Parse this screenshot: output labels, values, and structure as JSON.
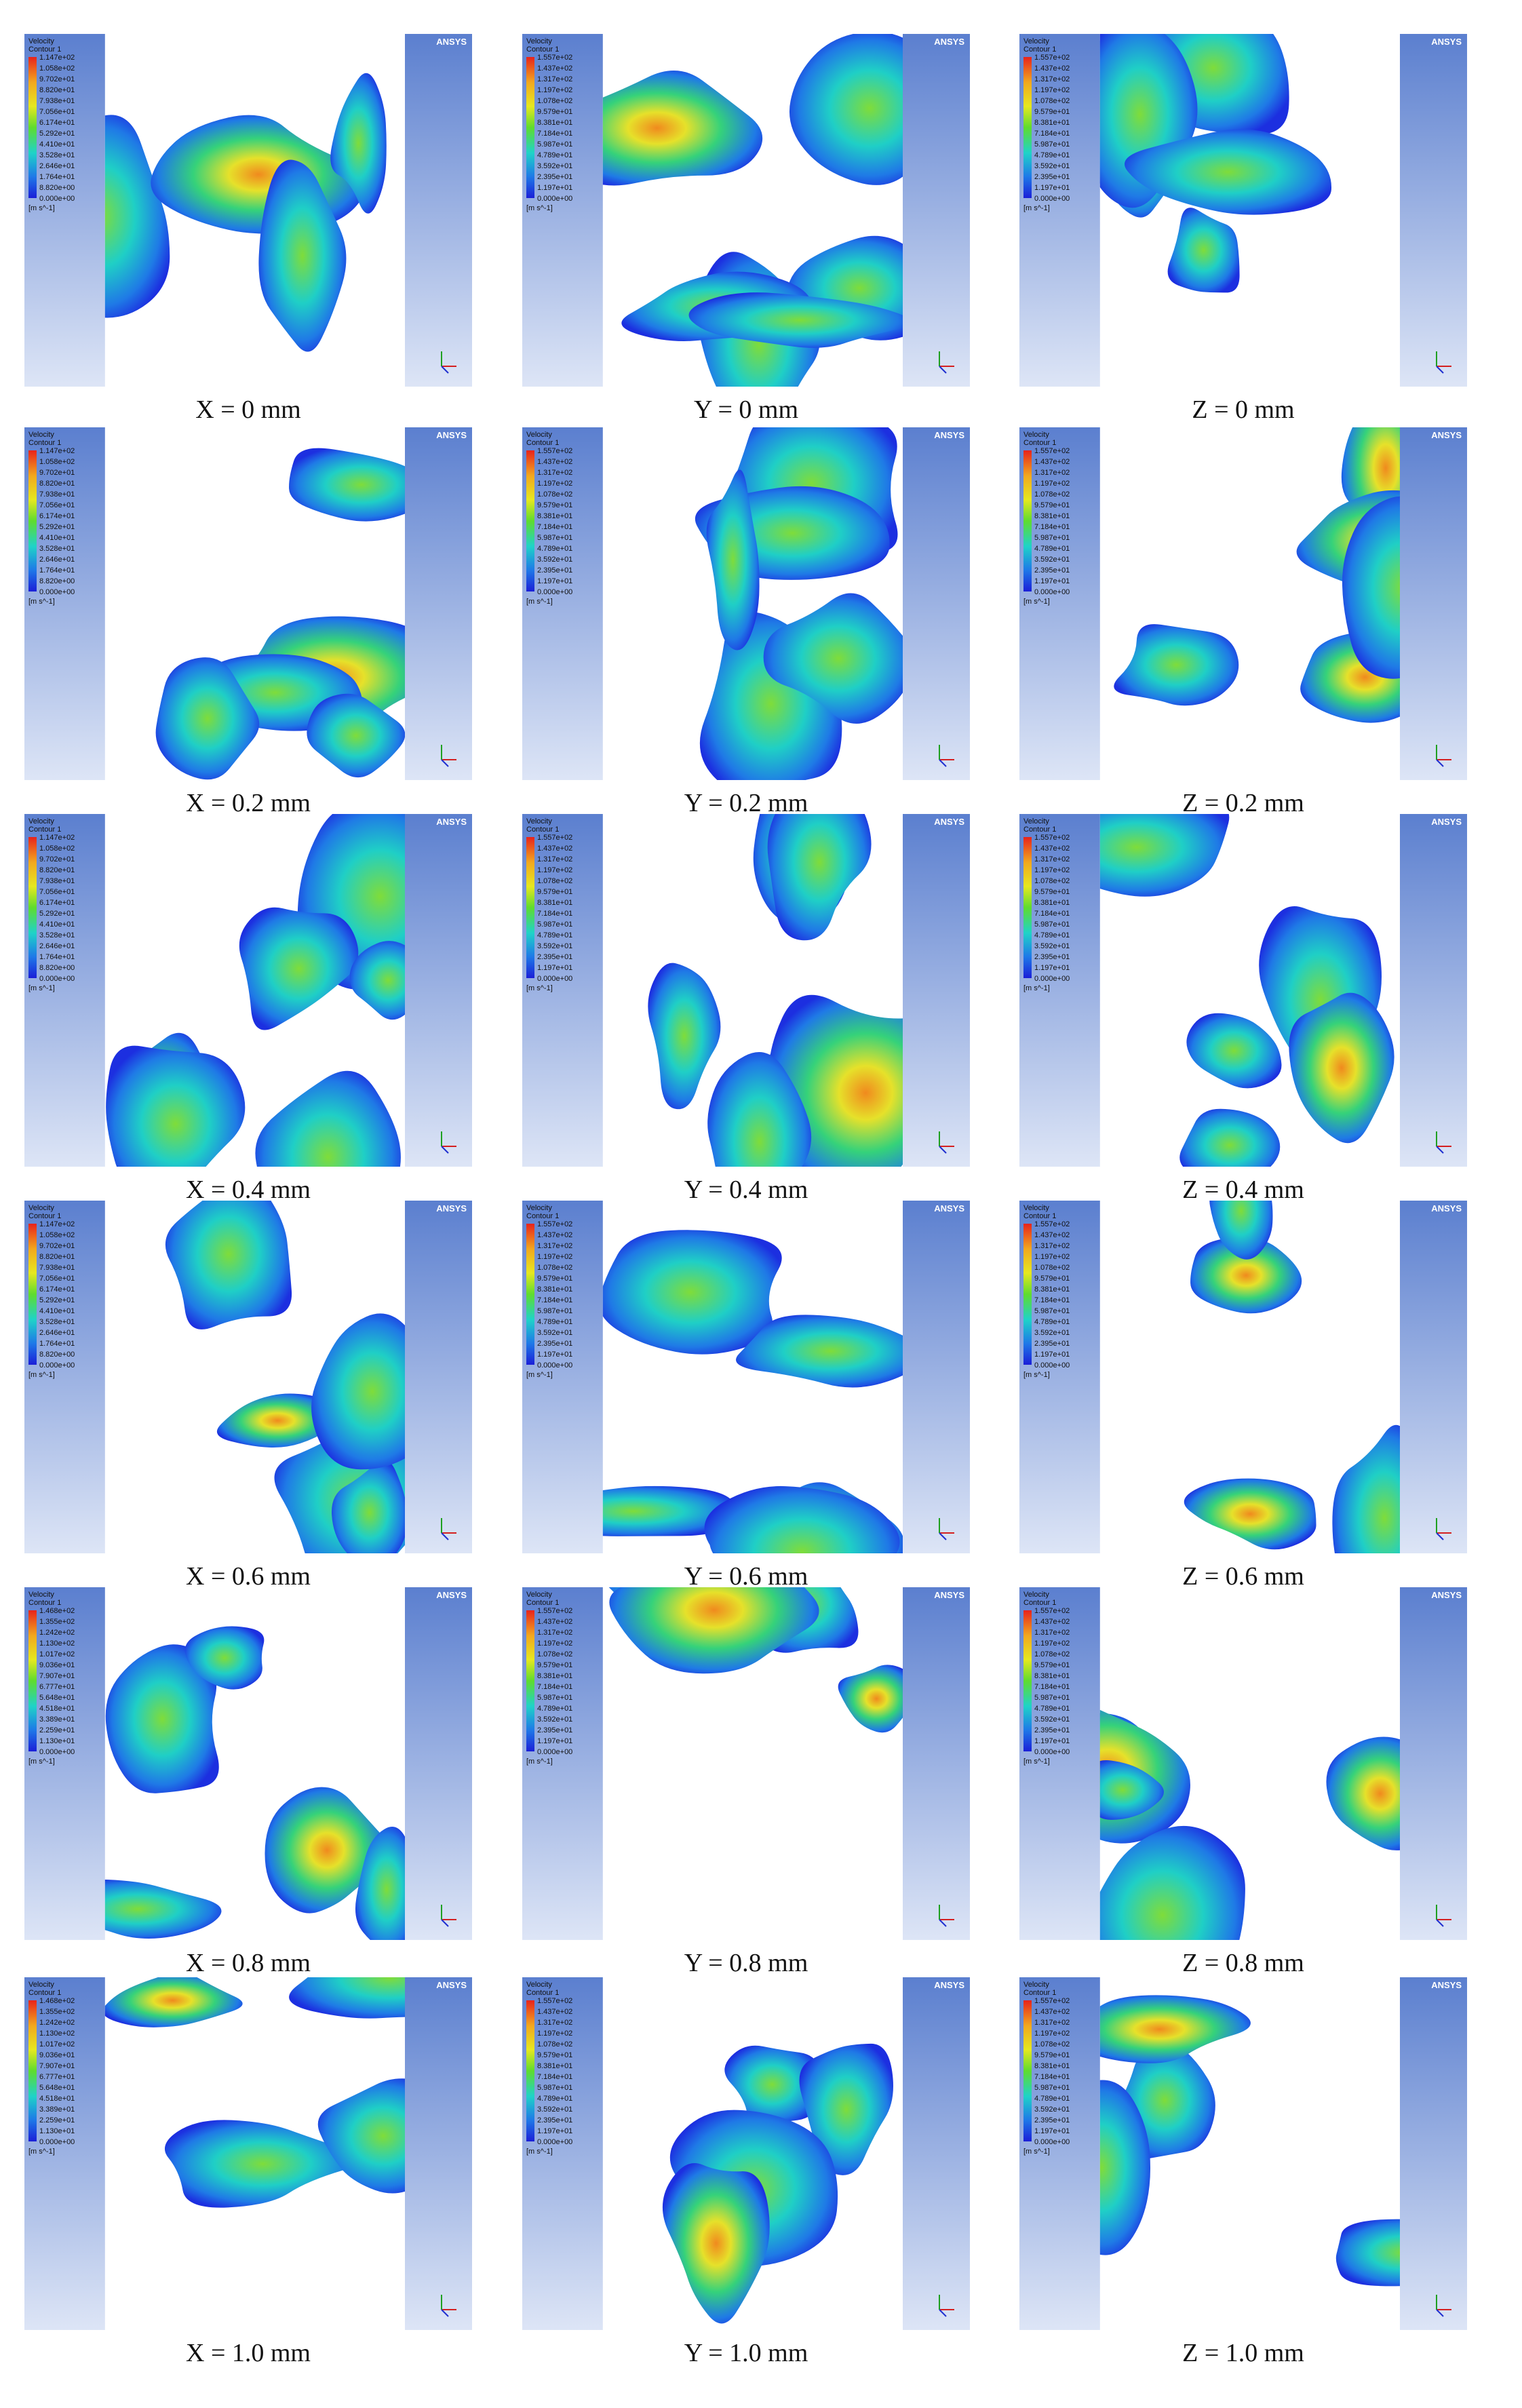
{
  "figure": {
    "panels": [
      {
        "caption": "X = 0 mm",
        "logo": "ANSYS",
        "legend": {
          "title": "Velocity",
          "subtitle": "Contour 1",
          "unit": "[m s^-1]",
          "labels": [
            "1.147e+02",
            "1.058e+02",
            "9.702e+01",
            "8.820e+01",
            "7.938e+01",
            "7.056e+01",
            "6.174e+01",
            "5.292e+01",
            "4.410e+01",
            "3.528e+01",
            "2.646e+01",
            "1.764e+01",
            "8.820e+00",
            "0.000e+00"
          ]
        }
      },
      {
        "caption": "Y = 0 mm",
        "logo": "ANSYS",
        "legend": {
          "title": "Velocity",
          "subtitle": "Contour 1",
          "unit": "[m s^-1]",
          "labels": [
            "1.557e+02",
            "1.437e+02",
            "1.317e+02",
            "1.197e+02",
            "1.078e+02",
            "9.579e+01",
            "8.381e+01",
            "7.184e+01",
            "5.987e+01",
            "4.789e+01",
            "3.592e+01",
            "2.395e+01",
            "1.197e+01",
            "0.000e+00"
          ]
        }
      },
      {
        "caption": "Z = 0 mm",
        "logo": "ANSYS",
        "legend": {
          "title": "Velocity",
          "subtitle": "Contour 1",
          "unit": "[m s^-1]",
          "labels": [
            "1.557e+02",
            "1.437e+02",
            "1.317e+02",
            "1.197e+02",
            "1.078e+02",
            "9.579e+01",
            "8.381e+01",
            "7.184e+01",
            "5.987e+01",
            "4.789e+01",
            "3.592e+01",
            "2.395e+01",
            "1.197e+01",
            "0.000e+00"
          ]
        }
      },
      {
        "caption": "X = 0.2 mm",
        "logo": "ANSYS",
        "legend": {
          "title": "Velocity",
          "subtitle": "Contour 1",
          "unit": "[m s^-1]",
          "labels": [
            "1.147e+02",
            "1.058e+02",
            "9.702e+01",
            "8.820e+01",
            "7.938e+01",
            "7.056e+01",
            "6.174e+01",
            "5.292e+01",
            "4.410e+01",
            "3.528e+01",
            "2.646e+01",
            "1.764e+01",
            "8.820e+00",
            "0.000e+00"
          ]
        }
      },
      {
        "caption": "Y = 0.2 mm",
        "logo": "ANSYS",
        "legend": {
          "title": "Velocity",
          "subtitle": "Contour 1",
          "unit": "[m s^-1]",
          "labels": [
            "1.557e+02",
            "1.437e+02",
            "1.317e+02",
            "1.197e+02",
            "1.078e+02",
            "9.579e+01",
            "8.381e+01",
            "7.184e+01",
            "5.987e+01",
            "4.789e+01",
            "3.592e+01",
            "2.395e+01",
            "1.197e+01",
            "0.000e+00"
          ]
        }
      },
      {
        "caption": "Z = 0.2 mm",
        "logo": "ANSYS",
        "legend": {
          "title": "Velocity",
          "subtitle": "Contour 1",
          "unit": "[m s^-1]",
          "labels": [
            "1.557e+02",
            "1.437e+02",
            "1.317e+02",
            "1.197e+02",
            "1.078e+02",
            "9.579e+01",
            "8.381e+01",
            "7.184e+01",
            "5.987e+01",
            "4.789e+01",
            "3.592e+01",
            "2.395e+01",
            "1.197e+01",
            "0.000e+00"
          ]
        }
      },
      {
        "caption": "X = 0.4 mm",
        "logo": "ANSYS",
        "legend": {
          "title": "Velocity",
          "subtitle": "Contour 1",
          "unit": "[m s^-1]",
          "labels": [
            "1.147e+02",
            "1.058e+02",
            "9.702e+01",
            "8.820e+01",
            "7.938e+01",
            "7.056e+01",
            "6.174e+01",
            "5.292e+01",
            "4.410e+01",
            "3.528e+01",
            "2.646e+01",
            "1.764e+01",
            "8.820e+00",
            "0.000e+00"
          ]
        }
      },
      {
        "caption": "Y = 0.4 mm",
        "logo": "ANSYS",
        "legend": {
          "title": "Velocity",
          "subtitle": "Contour 1",
          "unit": "[m s^-1]",
          "labels": [
            "1.557e+02",
            "1.437e+02",
            "1.317e+02",
            "1.197e+02",
            "1.078e+02",
            "9.579e+01",
            "8.381e+01",
            "7.184e+01",
            "5.987e+01",
            "4.789e+01",
            "3.592e+01",
            "2.395e+01",
            "1.197e+01",
            "0.000e+00"
          ]
        }
      },
      {
        "caption": "Z = 0.4 mm",
        "logo": "ANSYS",
        "legend": {
          "title": "Velocity",
          "subtitle": "Contour 1",
          "unit": "[m s^-1]",
          "labels": [
            "1.557e+02",
            "1.437e+02",
            "1.317e+02",
            "1.197e+02",
            "1.078e+02",
            "9.579e+01",
            "8.381e+01",
            "7.184e+01",
            "5.987e+01",
            "4.789e+01",
            "3.592e+01",
            "2.395e+01",
            "1.197e+01",
            "0.000e+00"
          ]
        }
      },
      {
        "caption": "X = 0.6 mm",
        "logo": "ANSYS",
        "legend": {
          "title": "Velocity",
          "subtitle": "Contour 1",
          "unit": "[m s^-1]",
          "labels": [
            "1.147e+02",
            "1.058e+02",
            "9.702e+01",
            "8.820e+01",
            "7.938e+01",
            "7.056e+01",
            "6.174e+01",
            "5.292e+01",
            "4.410e+01",
            "3.528e+01",
            "2.646e+01",
            "1.764e+01",
            "8.820e+00",
            "0.000e+00"
          ]
        }
      },
      {
        "caption": "Y = 0.6 mm",
        "logo": "ANSYS",
        "legend": {
          "title": "Velocity",
          "subtitle": "Contour 1",
          "unit": "[m s^-1]",
          "labels": [
            "1.557e+02",
            "1.437e+02",
            "1.317e+02",
            "1.197e+02",
            "1.078e+02",
            "9.579e+01",
            "8.381e+01",
            "7.184e+01",
            "5.987e+01",
            "4.789e+01",
            "3.592e+01",
            "2.395e+01",
            "1.197e+01",
            "0.000e+00"
          ]
        }
      },
      {
        "caption": "Z = 0.6 mm",
        "logo": "ANSYS",
        "legend": {
          "title": "Velocity",
          "subtitle": "Contour 1",
          "unit": "[m s^-1]",
          "labels": [
            "1.557e+02",
            "1.437e+02",
            "1.317e+02",
            "1.197e+02",
            "1.078e+02",
            "9.579e+01",
            "8.381e+01",
            "7.184e+01",
            "5.987e+01",
            "4.789e+01",
            "3.592e+01",
            "2.395e+01",
            "1.197e+01",
            "0.000e+00"
          ]
        }
      },
      {
        "caption": "X = 0.8 mm",
        "logo": "ANSYS",
        "legend": {
          "title": "Velocity",
          "subtitle": "Contour 1",
          "unit": "[m s^-1]",
          "labels": [
            "1.468e+02",
            "1.355e+02",
            "1.242e+02",
            "1.130e+02",
            "1.017e+02",
            "9.036e+01",
            "7.907e+01",
            "6.777e+01",
            "5.648e+01",
            "4.518e+01",
            "3.389e+01",
            "2.259e+01",
            "1.130e+01",
            "0.000e+00"
          ]
        }
      },
      {
        "caption": "Y = 0.8 mm",
        "logo": "ANSYS",
        "legend": {
          "title": "Velocity",
          "subtitle": "Contour 1",
          "unit": "[m s^-1]",
          "labels": [
            "1.557e+02",
            "1.437e+02",
            "1.317e+02",
            "1.197e+02",
            "1.078e+02",
            "9.579e+01",
            "8.381e+01",
            "7.184e+01",
            "5.987e+01",
            "4.789e+01",
            "3.592e+01",
            "2.395e+01",
            "1.197e+01",
            "0.000e+00"
          ]
        }
      },
      {
        "caption": "Z = 0.8 mm",
        "logo": "ANSYS",
        "legend": {
          "title": "Velocity",
          "subtitle": "Contour 1",
          "unit": "[m s^-1]",
          "labels": [
            "1.557e+02",
            "1.437e+02",
            "1.317e+02",
            "1.197e+02",
            "1.078e+02",
            "9.579e+01",
            "8.381e+01",
            "7.184e+01",
            "5.987e+01",
            "4.789e+01",
            "3.592e+01",
            "2.395e+01",
            "1.197e+01",
            "0.000e+00"
          ]
        }
      },
      {
        "caption": "X = 1.0 mm",
        "logo": "ANSYS",
        "legend": {
          "title": "Velocity",
          "subtitle": "Contour 1",
          "unit": "[m s^-1]",
          "labels": [
            "1.468e+02",
            "1.355e+02",
            "1.242e+02",
            "1.130e+02",
            "1.017e+02",
            "9.036e+01",
            "7.907e+01",
            "6.777e+01",
            "5.648e+01",
            "4.518e+01",
            "3.389e+01",
            "2.259e+01",
            "1.130e+01",
            "0.000e+00"
          ]
        }
      },
      {
        "caption": "Y = 1.0 mm",
        "logo": "ANSYS",
        "legend": {
          "title": "Velocity",
          "subtitle": "Contour 1",
          "unit": "[m s^-1]",
          "labels": [
            "1.557e+02",
            "1.437e+02",
            "1.317e+02",
            "1.197e+02",
            "1.078e+02",
            "9.579e+01",
            "8.381e+01",
            "7.184e+01",
            "5.987e+01",
            "4.789e+01",
            "3.592e+01",
            "2.395e+01",
            "1.197e+01",
            "0.000e+00"
          ]
        }
      },
      {
        "caption": "Z = 1.0 mm",
        "logo": "ANSYS",
        "legend": {
          "title": "Velocity",
          "subtitle": "Contour 1",
          "unit": "[m s^-1]",
          "labels": [
            "1.557e+02",
            "1.437e+02",
            "1.317e+02",
            "1.197e+02",
            "1.078e+02",
            "9.579e+01",
            "8.381e+01",
            "7.184e+01",
            "5.987e+01",
            "4.789e+01",
            "3.592e+01",
            "2.395e+01",
            "1.197e+01",
            "0.000e+00"
          ]
        }
      }
    ]
  }
}
